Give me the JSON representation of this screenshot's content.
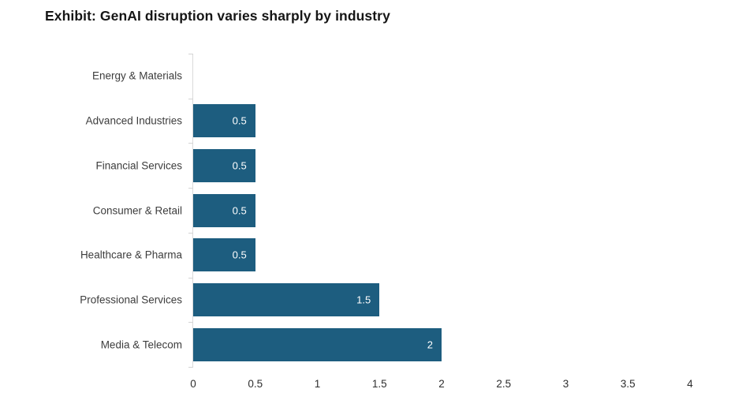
{
  "chart_data": {
    "type": "bar",
    "orientation": "horizontal",
    "title": "Exhibit: GenAI disruption varies sharply by industry",
    "categories": [
      "Energy & Materials",
      "Advanced Industries",
      "Financial Services",
      "Consumer & Retail",
      "Healthcare & Pharma",
      "Professional Services",
      "Media & Telecom"
    ],
    "values": [
      0,
      0.5,
      0.5,
      0.5,
      0.5,
      1.5,
      2
    ],
    "value_labels": [
      "",
      "0.5",
      "0.5",
      "0.5",
      "0.5",
      "1.5",
      "2"
    ],
    "xlim": [
      0,
      4
    ],
    "x_ticks": [
      0,
      0.5,
      1,
      1.5,
      2,
      2.5,
      3,
      3.5,
      4
    ],
    "x_tick_labels": [
      "0",
      "0.5",
      "1",
      "1.5",
      "2",
      "2.5",
      "3",
      "3.5",
      "4"
    ],
    "xlabel": "",
    "ylabel": "",
    "grid": false,
    "legend": null,
    "bar_color": "#1d5d7f",
    "value_label_color": "#ffffff",
    "axis_line_color": "#d9d9d9"
  }
}
